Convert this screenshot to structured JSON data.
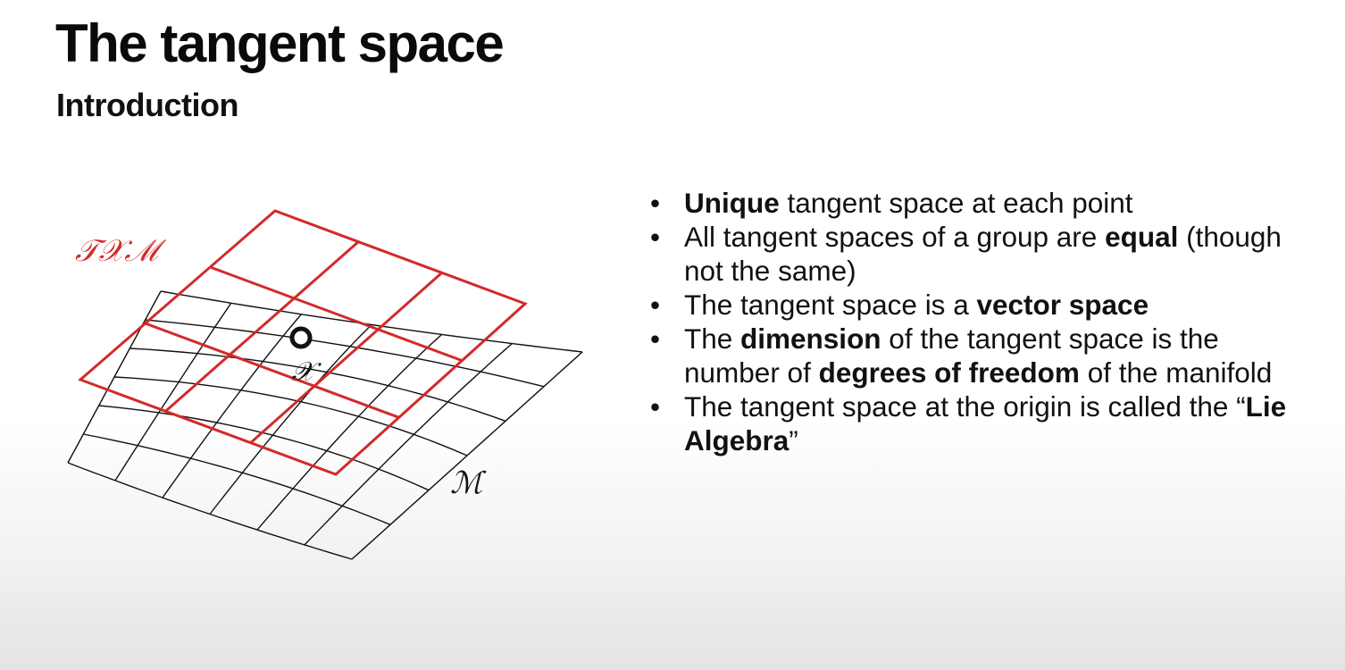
{
  "slide": {
    "title": "The tangent space",
    "subtitle": "Introduction"
  },
  "figure": {
    "tangent_label": "𝒯𝒳ℳ",
    "manifold_label": "ℳ",
    "point_label": "𝒳",
    "tangent_color": "#d32a2a",
    "grid_color": "#111111"
  },
  "bullets": [
    {
      "pre": "",
      "bold": "Unique",
      "post": " tangent space at each point"
    },
    {
      "pre": "All tangent spaces of a group are ",
      "bold": "equal",
      "post": " (though not the same)"
    },
    {
      "pre": "The tangent space is a ",
      "bold": "vector space",
      "post": ""
    },
    {
      "pre": "The ",
      "bold": "dimension",
      "mid": " of the tangent space is the number of ",
      "bold2": "degrees of freedom",
      "post": " of the manifold"
    },
    {
      "pre": "The tangent space at the origin is called the “",
      "bold": "Lie Algebra",
      "post": "”"
    }
  ]
}
